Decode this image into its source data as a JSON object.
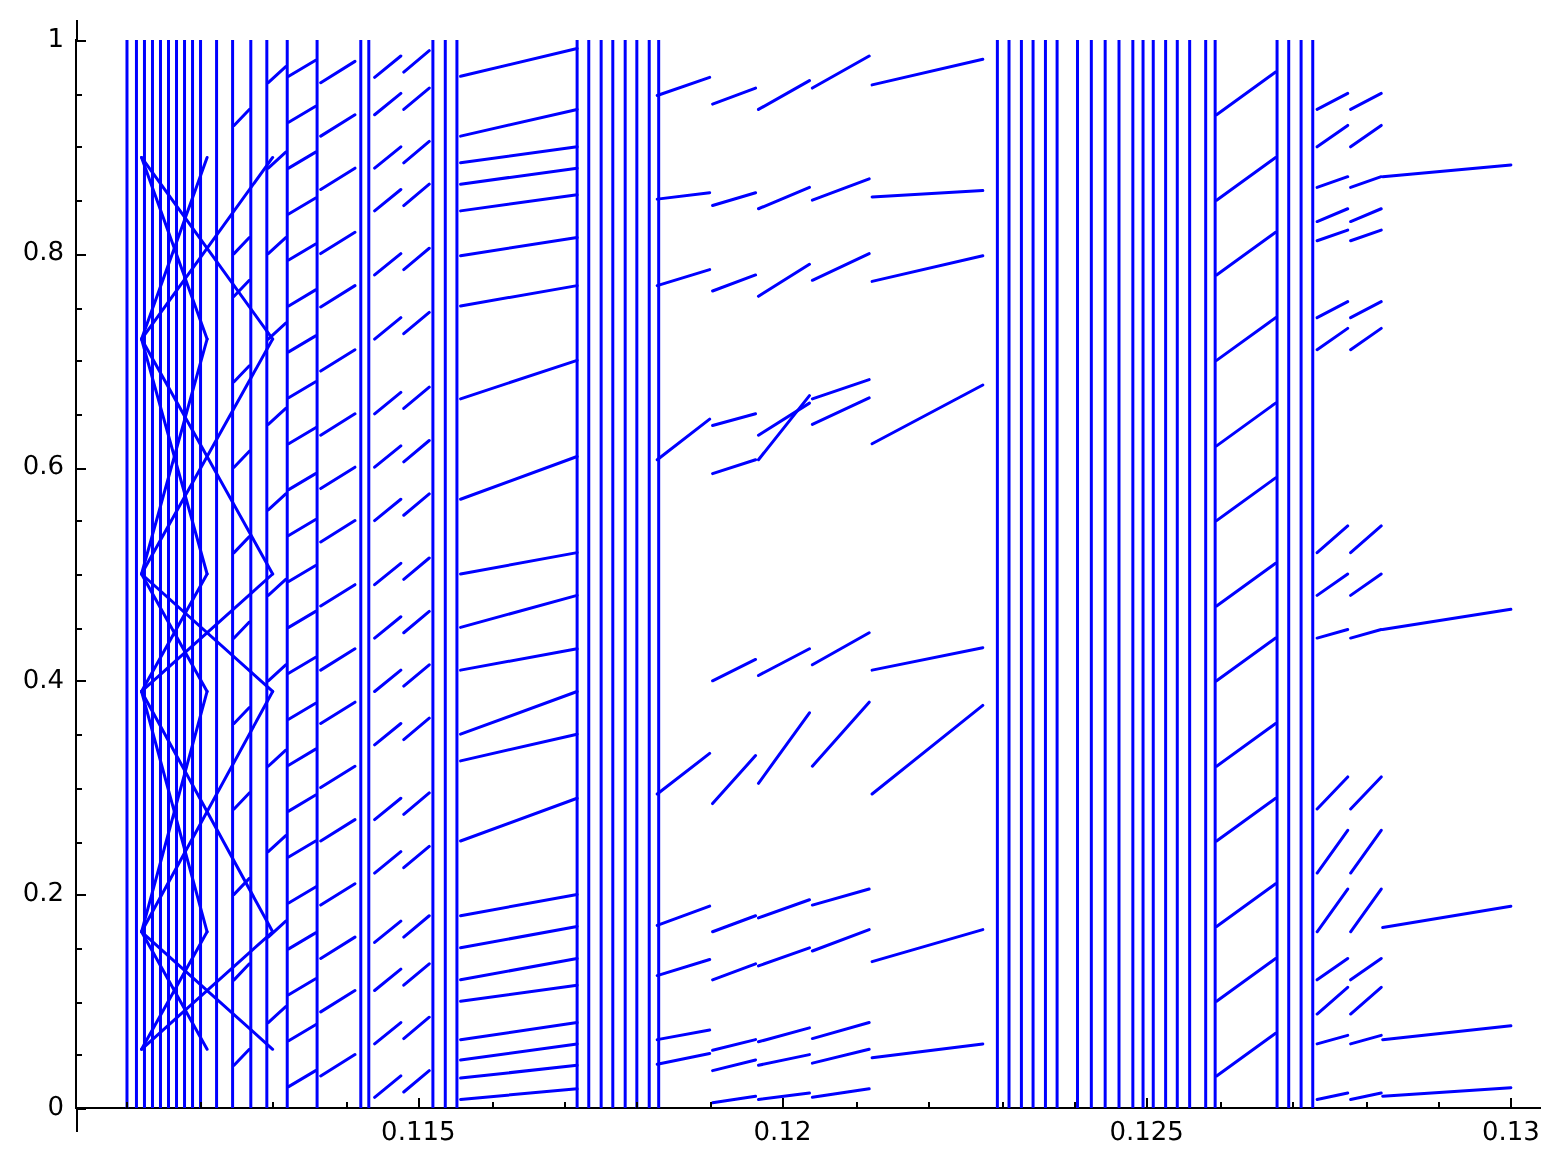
{
  "chart_data": {
    "type": "line",
    "xlim": [
      0.1103,
      0.1304
    ],
    "ylim": [
      0,
      1
    ],
    "xticks": [
      {
        "value": 0.111,
        "label": null
      },
      {
        "value": 0.112,
        "label": null
      },
      {
        "value": 0.113,
        "label": null
      },
      {
        "value": 0.114,
        "label": null
      },
      0.115,
      {
        "value": 0.116,
        "label": null
      },
      {
        "value": 0.117,
        "label": null
      },
      {
        "value": 0.118,
        "label": null
      },
      {
        "value": 0.119,
        "label": null
      },
      0.12,
      {
        "value": 0.121,
        "label": null
      },
      {
        "value": 0.122,
        "label": null
      },
      {
        "value": 0.123,
        "label": null
      },
      {
        "value": 0.124,
        "label": null
      },
      0.125,
      {
        "value": 0.126,
        "label": null
      },
      {
        "value": 0.127,
        "label": null
      },
      {
        "value": 0.128,
        "label": null
      },
      {
        "value": 0.129,
        "label": null
      },
      0.13
    ],
    "yticks": [
      0,
      {
        "value": 0.05,
        "label": null
      },
      {
        "value": 0.1,
        "label": null
      },
      {
        "value": 0.15,
        "label": null
      },
      0.2,
      {
        "value": 0.25,
        "label": null
      },
      {
        "value": 0.3,
        "label": null
      },
      {
        "value": 0.35,
        "label": null
      },
      0.4,
      {
        "value": 0.45,
        "label": null
      },
      {
        "value": 0.5,
        "label": null
      },
      {
        "value": 0.55,
        "label": null
      },
      0.6,
      {
        "value": 0.65,
        "label": null
      },
      {
        "value": 0.7,
        "label": null
      },
      {
        "value": 0.75,
        "label": null
      },
      0.8,
      {
        "value": 0.85,
        "label": null
      },
      {
        "value": 0.9,
        "label": null
      },
      {
        "value": 0.95,
        "label": null
      },
      1
    ],
    "ref_lines": [
      {
        "axis": "x",
        "value": 0.111,
        "color": "#0000ff"
      },
      {
        "axis": "x",
        "value": 0.11113,
        "color": "#0000ff"
      },
      {
        "axis": "x",
        "value": 0.11124,
        "color": "#0000ff"
      },
      {
        "axis": "x",
        "value": 0.11135,
        "color": "#0000ff"
      },
      {
        "axis": "x",
        "value": 0.11146,
        "color": "#0000ff"
      },
      {
        "axis": "x",
        "value": 0.11157,
        "color": "#0000ff"
      },
      {
        "axis": "x",
        "value": 0.11168,
        "color": "#0000ff"
      },
      {
        "axis": "x",
        "value": 0.11179,
        "color": "#0000ff"
      },
      {
        "axis": "x",
        "value": 0.1119,
        "color": "#0000ff"
      },
      {
        "axis": "x",
        "value": 0.11201,
        "color": "#0000ff"
      },
      {
        "axis": "x",
        "value": 0.11223,
        "color": "#0000ff"
      },
      {
        "axis": "x",
        "value": 0.11245,
        "color": "#0000ff"
      },
      {
        "axis": "x",
        "value": 0.1127,
        "color": "#0000ff"
      },
      {
        "axis": "x",
        "value": 0.11292,
        "color": "#0000ff"
      },
      {
        "axis": "x",
        "value": 0.1132,
        "color": "#0000ff"
      },
      {
        "axis": "x",
        "value": 0.11361,
        "color": "#0000ff"
      },
      {
        "axis": "x",
        "value": 0.11421,
        "color": "#0000ff"
      },
      {
        "axis": "x",
        "value": 0.11432,
        "color": "#0000ff"
      },
      {
        "axis": "x",
        "value": 0.1152,
        "color": "#0000ff"
      },
      {
        "axis": "x",
        "value": 0.11537,
        "color": "#0000ff"
      },
      {
        "axis": "x",
        "value": 0.11553,
        "color": "#0000ff"
      },
      {
        "axis": "x",
        "value": 0.11718,
        "color": "#0000ff"
      },
      {
        "axis": "x",
        "value": 0.11734,
        "color": "#0000ff"
      },
      {
        "axis": "x",
        "value": 0.11751,
        "color": "#0000ff"
      },
      {
        "axis": "x",
        "value": 0.11767,
        "color": "#0000ff"
      },
      {
        "axis": "x",
        "value": 0.11784,
        "color": "#0000ff"
      },
      {
        "axis": "x",
        "value": 0.118,
        "color": "#0000ff"
      },
      {
        "axis": "x",
        "value": 0.11817,
        "color": "#0000ff"
      },
      {
        "axis": "x",
        "value": 0.1183,
        "color": "#0000ff"
      },
      {
        "axis": "x",
        "value": 0.12295,
        "color": "#0000ff"
      },
      {
        "axis": "x",
        "value": 0.12311,
        "color": "#0000ff"
      },
      {
        "axis": "x",
        "value": 0.12328,
        "color": "#0000ff"
      },
      {
        "axis": "x",
        "value": 0.12344,
        "color": "#0000ff"
      },
      {
        "axis": "x",
        "value": 0.12361,
        "color": "#0000ff"
      },
      {
        "axis": "x",
        "value": 0.12377,
        "color": "#0000ff"
      },
      {
        "axis": "x",
        "value": 0.12405,
        "color": "#0000ff"
      },
      {
        "axis": "x",
        "value": 0.12424,
        "color": "#0000ff"
      },
      {
        "axis": "x",
        "value": 0.12443,
        "color": "#0000ff"
      },
      {
        "axis": "x",
        "value": 0.12462,
        "color": "#0000ff"
      },
      {
        "axis": "x",
        "value": 0.12481,
        "color": "#0000ff"
      },
      {
        "axis": "x",
        "value": 0.12495,
        "color": "#0000ff"
      },
      {
        "axis": "x",
        "value": 0.12509,
        "color": "#0000ff"
      },
      {
        "axis": "x",
        "value": 0.12526,
        "color": "#0000ff"
      },
      {
        "axis": "x",
        "value": 0.12542,
        "color": "#0000ff"
      },
      {
        "axis": "x",
        "value": 0.12559,
        "color": "#0000ff"
      },
      {
        "axis": "x",
        "value": 0.12581,
        "color": "#0000ff"
      },
      {
        "axis": "x",
        "value": 0.12594,
        "color": "#0000ff"
      },
      {
        "axis": "x",
        "value": 0.12679,
        "color": "#0000ff"
      },
      {
        "axis": "x",
        "value": 0.12695,
        "color": "#0000ff"
      },
      {
        "axis": "x",
        "value": 0.12712,
        "color": "#0000ff"
      },
      {
        "axis": "x",
        "value": 0.12728,
        "color": "#0000ff"
      }
    ],
    "series": [
      {
        "color": "#0000ff",
        "x": [
          0.1112,
          0.1121,
          null,
          0.11247,
          0.11268,
          null,
          0.11294,
          0.11318,
          null,
          0.11322,
          0.11359,
          null,
          0.11366,
          0.11413,
          null,
          0.1144,
          0.11476,
          null,
          0.1148,
          0.11515,
          null,
          0.11558,
          0.11718,
          null,
          0.11904,
          0.11963,
          null,
          0.11967,
          0.12037,
          null,
          0.12041,
          0.12119,
          null,
          0.12596,
          0.12677,
          null,
          0.12734,
          0.12776,
          null,
          0.1278,
          0.12822,
          null,
          0.12824,
          0.13
        ],
        "values": [
          0.055,
          0.165,
          null,
          0.04,
          0.055,
          null,
          0.08,
          0.095,
          null,
          0.02,
          0.035,
          null,
          0.03,
          0.05,
          null,
          0.01,
          0.03,
          null,
          0.015,
          0.035,
          null,
          0.008,
          0.018,
          null,
          0.005,
          0.011,
          null,
          0.008,
          0.014,
          null,
          0.01,
          0.018,
          null,
          0.03,
          0.07,
          null,
          0.008,
          0.014,
          null,
          0.008,
          0.014,
          null,
          0.011,
          0.019
        ]
      },
      {
        "color": "#0000ff",
        "x": [
          0.1112,
          0.113,
          null,
          0.11322,
          0.11359,
          null,
          0.11366,
          0.11413,
          null,
          0.1144,
          0.11476,
          null,
          0.1148,
          0.11515,
          null,
          0.11558,
          0.11718,
          null,
          0.11828,
          0.119,
          null,
          0.11904,
          0.11963,
          null,
          0.11967,
          0.12037,
          null,
          0.12041,
          0.12119,
          null,
          0.12596,
          0.12677,
          null,
          0.12734,
          0.12776,
          null,
          0.1278,
          0.12822,
          null,
          0.12824,
          0.13
        ],
        "values": [
          0.055,
          0.165,
          null,
          0.063,
          0.078,
          null,
          0.09,
          0.11,
          null,
          0.06,
          0.08,
          null,
          0.065,
          0.085,
          null,
          0.028,
          0.04,
          null,
          0.041,
          0.051,
          null,
          0.035,
          0.045,
          null,
          0.04,
          0.05,
          null,
          0.042,
          0.055,
          null,
          0.1,
          0.14,
          null,
          0.06,
          0.068,
          null,
          0.06,
          0.068,
          null,
          0.064,
          0.077
        ]
      },
      {
        "color": "#0000ff",
        "x": [
          0.1112,
          0.1121,
          null,
          0.11247,
          0.11268,
          null,
          0.11294,
          0.11318,
          null,
          0.11322,
          0.11359,
          null,
          0.11366,
          0.11413,
          null,
          0.1144,
          0.11476,
          null,
          0.1148,
          0.11515,
          null,
          0.11558,
          0.11718,
          null,
          0.11828,
          0.119,
          null,
          0.11904,
          0.11963,
          null,
          0.11967,
          0.12037,
          null,
          0.12041,
          0.12119,
          null,
          0.12123,
          0.12275,
          null,
          0.12596,
          0.12677,
          null,
          0.12734,
          0.12776,
          null,
          0.1278,
          0.12822
        ],
        "values": [
          0.165,
          0.055,
          null,
          0.12,
          0.135,
          null,
          0.16,
          0.175,
          null,
          0.106,
          0.121,
          null,
          0.14,
          0.16,
          null,
          0.11,
          0.13,
          null,
          0.115,
          0.135,
          null,
          0.045,
          0.06,
          null,
          0.064,
          0.073,
          null,
          0.054,
          0.064,
          null,
          0.062,
          0.075,
          null,
          0.065,
          0.08,
          null,
          0.047,
          0.06,
          null,
          0.17,
          0.21,
          null,
          0.088,
          0.113,
          null,
          0.088,
          0.113
        ]
      },
      {
        "color": "#0000ff",
        "x": [
          0.1112,
          0.113,
          null,
          0.11322,
          0.11359,
          null,
          0.11366,
          0.11413,
          null,
          0.1144,
          0.11476,
          null,
          0.1148,
          0.11515,
          null,
          0.11558,
          0.11718,
          null,
          0.11828,
          0.119,
          null,
          0.11904,
          0.11963,
          null,
          0.11967,
          0.12037,
          null,
          0.12041,
          0.12119,
          null,
          0.12123,
          0.12275,
          null,
          0.12596,
          0.12677,
          null,
          0.12734,
          0.12776,
          null,
          0.1278,
          0.12822
        ],
        "values": [
          0.165,
          0.055,
          null,
          0.149,
          0.164,
          null,
          0.19,
          0.21,
          null,
          0.155,
          0.175,
          null,
          0.16,
          0.18,
          null,
          0.064,
          0.08,
          null,
          0.124,
          0.139,
          null,
          0.12,
          0.135,
          null,
          0.133,
          0.15,
          null,
          0.147,
          0.167,
          null,
          0.137,
          0.167,
          null,
          0.25,
          0.29,
          null,
          0.12,
          0.14,
          null,
          0.12,
          0.14
        ]
      },
      {
        "color": "#0000ff",
        "x": [
          0.1112,
          0.1121,
          null,
          0.11247,
          0.11268,
          null,
          0.11294,
          0.11318,
          null,
          0.11322,
          0.11359,
          null,
          0.11366,
          0.11413,
          null,
          0.1144,
          0.11476,
          null,
          0.1148,
          0.11515,
          null,
          0.11558,
          0.11718,
          null,
          0.11828,
          0.119,
          null,
          0.11904,
          0.11963,
          null,
          0.11967,
          0.12037,
          null,
          0.12041,
          0.12119,
          null,
          0.12596,
          0.12677,
          null,
          0.12734,
          0.12776,
          null,
          0.1278,
          0.12822,
          null,
          0.12824,
          0.13
        ],
        "values": [
          0.165,
          0.39,
          null,
          0.2,
          0.215,
          null,
          0.24,
          0.255,
          null,
          0.192,
          0.207,
          null,
          0.25,
          0.27,
          null,
          0.22,
          0.24,
          null,
          0.225,
          0.245,
          null,
          0.1,
          0.115,
          null,
          0.171,
          0.189,
          null,
          0.165,
          0.18,
          null,
          0.178,
          0.195,
          null,
          0.19,
          0.205,
          null,
          0.32,
          0.36,
          null,
          0.165,
          0.205,
          null,
          0.165,
          0.205,
          null,
          0.169,
          0.189
        ]
      },
      {
        "color": "#0000ff",
        "x": [
          0.1112,
          0.113,
          null,
          0.11322,
          0.11359,
          null,
          0.11366,
          0.11413,
          null,
          0.1144,
          0.11476,
          null,
          0.1148,
          0.11515,
          null,
          0.11558,
          0.11718,
          null,
          0.11828,
          0.119,
          null,
          0.11904,
          0.11963,
          null,
          0.11967,
          0.12037,
          null,
          0.12041,
          0.12119,
          null,
          0.12123,
          0.12275,
          null,
          0.12596,
          0.12677,
          null,
          0.12734,
          0.12776,
          null,
          0.1278,
          0.12822
        ],
        "values": [
          0.165,
          0.39,
          null,
          0.235,
          0.25,
          null,
          0.3,
          0.32,
          null,
          0.27,
          0.29,
          null,
          0.275,
          0.295,
          null,
          0.12,
          0.14,
          null,
          0.294,
          0.332,
          null,
          0.285,
          0.33,
          null,
          0.304,
          0.37,
          null,
          0.32,
          0.38,
          null,
          0.294,
          0.377,
          null,
          0.4,
          0.44,
          null,
          0.22,
          0.26,
          null,
          0.22,
          0.26
        ]
      },
      {
        "color": "#0000ff",
        "x": [
          0.1112,
          0.1121,
          null,
          0.11247,
          0.11268,
          null,
          0.11294,
          0.11318,
          null,
          0.11322,
          0.11359,
          null,
          0.11366,
          0.11413,
          null,
          0.1144,
          0.11476,
          null,
          0.1148,
          0.11515,
          null,
          0.11558,
          0.11718,
          null,
          0.11904,
          0.11963,
          null,
          0.11967,
          0.12037,
          null,
          0.12041,
          0.12119,
          null,
          0.12123,
          0.12275,
          null,
          0.12596,
          0.12677,
          null,
          0.12734,
          0.12776,
          null,
          0.1278,
          0.12822
        ],
        "values": [
          0.39,
          0.165,
          null,
          0.28,
          0.295,
          null,
          0.32,
          0.335,
          null,
          0.278,
          0.293,
          null,
          0.36,
          0.38,
          null,
          0.34,
          0.36,
          null,
          0.345,
          0.365,
          null,
          0.15,
          0.17,
          null,
          0.4,
          0.42,
          null,
          0.405,
          0.43,
          null,
          0.415,
          0.445,
          null,
          0.41,
          0.431,
          null,
          0.47,
          0.51,
          null,
          0.28,
          0.31,
          null,
          0.28,
          0.31
        ]
      },
      {
        "color": "#0000ff",
        "x": [
          0.1112,
          0.113,
          null,
          0.11322,
          0.11359,
          null,
          0.11366,
          0.11413,
          null,
          0.1144,
          0.11476,
          null,
          0.1148,
          0.11515,
          null,
          0.11558,
          0.11718,
          null,
          0.11828,
          0.119,
          null,
          0.11904,
          0.11963,
          null,
          0.11967,
          0.12037,
          null,
          0.12041,
          0.12119,
          null,
          0.12123,
          0.12275,
          null,
          0.12596,
          0.12677,
          null,
          0.12734,
          0.12776,
          null,
          0.1278,
          0.12822,
          null,
          0.12824,
          0.13
        ],
        "values": [
          0.39,
          0.165,
          null,
          0.321,
          0.336,
          null,
          0.41,
          0.43,
          null,
          0.39,
          0.41,
          null,
          0.395,
          0.415,
          null,
          0.18,
          0.2,
          null,
          0.607,
          0.645,
          null,
          0.594,
          0.607,
          null,
          0.607,
          0.667,
          null,
          0.664,
          0.682,
          null,
          0.622,
          0.677,
          null,
          0.55,
          0.59,
          null,
          0.44,
          0.448,
          null,
          0.44,
          0.448,
          null,
          0.448,
          0.467
        ]
      },
      {
        "color": "#0000ff",
        "x": [
          0.1112,
          0.1121,
          null,
          0.11247,
          0.11268,
          null,
          0.11294,
          0.11318,
          null,
          0.11322,
          0.11359,
          null,
          0.11366,
          0.11413,
          null,
          0.1144,
          0.11476,
          null,
          0.1148,
          0.11515,
          null,
          0.11558,
          0.11718,
          null,
          0.11904,
          0.11963,
          null,
          0.11967,
          0.12037,
          null,
          0.12041,
          0.12119,
          null,
          0.12596,
          0.12677,
          null,
          0.12734,
          0.12776,
          null,
          0.1278,
          0.12822
        ],
        "values": [
          0.39,
          0.5,
          null,
          0.36,
          0.375,
          null,
          0.4,
          0.415,
          null,
          0.364,
          0.379,
          null,
          0.47,
          0.49,
          null,
          0.44,
          0.46,
          null,
          0.445,
          0.465,
          null,
          0.25,
          0.29,
          null,
          0.639,
          0.65,
          null,
          0.63,
          0.66,
          null,
          0.64,
          0.665,
          null,
          0.62,
          0.66,
          null,
          0.48,
          0.5,
          null,
          0.48,
          0.5
        ]
      },
      {
        "color": "#0000ff",
        "x": [
          0.1112,
          0.113,
          null,
          0.11322,
          0.11359,
          null,
          0.11366,
          0.11413,
          null,
          0.1144,
          0.11476,
          null,
          0.1148,
          0.11515,
          null,
          0.11558,
          0.11718,
          null,
          0.11828,
          0.119,
          null,
          0.11904,
          0.11963,
          null,
          0.11967,
          0.12037,
          null,
          0.12041,
          0.12119,
          null,
          0.12123,
          0.12275,
          null,
          0.12596,
          0.12677,
          null,
          0.12734,
          0.12776,
          null,
          0.1278,
          0.12822
        ],
        "values": [
          0.39,
          0.5,
          null,
          0.407,
          0.422,
          null,
          0.53,
          0.55,
          null,
          0.49,
          0.51,
          null,
          0.495,
          0.515,
          null,
          0.325,
          0.35,
          null,
          0.77,
          0.785,
          null,
          0.765,
          0.78,
          null,
          0.76,
          0.79,
          null,
          0.775,
          0.8,
          null,
          0.774,
          0.798,
          null,
          0.7,
          0.74,
          null,
          0.52,
          0.545,
          null,
          0.52,
          0.545
        ]
      },
      {
        "color": "#0000ff",
        "x": [
          0.1112,
          0.1121,
          null,
          0.11247,
          0.11268,
          null,
          0.11294,
          0.11318,
          null,
          0.11322,
          0.11359,
          null,
          0.11366,
          0.11413,
          null,
          0.1144,
          0.11476,
          null,
          0.1148,
          0.11515,
          null,
          0.11558,
          0.11718,
          null,
          0.11828,
          0.119,
          null,
          0.11904,
          0.11963,
          null,
          0.11967,
          0.12037,
          null,
          0.12041,
          0.12119,
          null,
          0.12123,
          0.12275,
          null,
          0.12596,
          0.12677,
          null,
          0.12734,
          0.12776,
          null,
          0.1278,
          0.12822
        ],
        "values": [
          0.5,
          0.39,
          null,
          0.44,
          0.455,
          null,
          0.48,
          0.495,
          null,
          0.45,
          0.465,
          null,
          0.58,
          0.6,
          null,
          0.55,
          0.57,
          null,
          0.555,
          0.575,
          null,
          0.35,
          0.39,
          null,
          0.851,
          0.857,
          null,
          0.845,
          0.857,
          null,
          0.842,
          0.862,
          null,
          0.85,
          0.87,
          null,
          0.853,
          0.859,
          null,
          0.78,
          0.82,
          null,
          0.71,
          0.73,
          null,
          0.71,
          0.73
        ]
      },
      {
        "color": "#0000ff",
        "x": [
          0.1112,
          0.113,
          null,
          0.11322,
          0.11359,
          null,
          0.11366,
          0.11413,
          null,
          0.1144,
          0.11476,
          null,
          0.1148,
          0.11515,
          null,
          0.11558,
          0.11718,
          null,
          0.11828,
          0.119,
          null,
          0.11904,
          0.11963,
          null,
          0.11967,
          0.12037,
          null,
          0.12041,
          0.12119,
          null,
          0.12123,
          0.12275,
          null,
          0.12596,
          0.12677,
          null,
          0.12734,
          0.12776,
          null,
          0.1278,
          0.12822
        ],
        "values": [
          0.5,
          0.39,
          null,
          0.493,
          0.508,
          null,
          0.63,
          0.65,
          null,
          0.6,
          0.62,
          null,
          0.605,
          0.625,
          null,
          0.41,
          0.43,
          null,
          0.948,
          0.965,
          null,
          0.94,
          0.955,
          null,
          0.935,
          0.962,
          null,
          0.955,
          0.985,
          null,
          0.958,
          0.982,
          null,
          0.85,
          0.89,
          null,
          0.74,
          0.755,
          null,
          0.74,
          0.755
        ]
      },
      {
        "color": "#0000ff",
        "x": [
          0.1112,
          0.1121,
          null,
          0.11247,
          0.11268,
          null,
          0.11294,
          0.11318,
          null,
          0.11322,
          0.11359,
          null,
          0.11366,
          0.11413,
          null,
          0.1144,
          0.11476,
          null,
          0.1148,
          0.11515,
          null,
          0.11558,
          0.11718,
          null,
          0.12596,
          0.12677,
          null,
          0.12734,
          0.12776,
          null,
          0.1278,
          0.12822
        ],
        "values": [
          0.5,
          0.72,
          null,
          0.52,
          0.535,
          null,
          0.56,
          0.575,
          null,
          0.536,
          0.551,
          null,
          0.69,
          0.71,
          null,
          0.65,
          0.67,
          null,
          0.655,
          0.675,
          null,
          0.45,
          0.48,
          null,
          0.93,
          0.97,
          null,
          0.812,
          0.822,
          null,
          0.812,
          0.822
        ]
      },
      {
        "color": "#0000ff",
        "x": [
          0.1112,
          0.113,
          null,
          0.11322,
          0.11359,
          null,
          0.11366,
          0.11413,
          null,
          0.1144,
          0.11476,
          null,
          0.1148,
          0.11515,
          null,
          0.11558,
          0.11718,
          null,
          0.12734,
          0.12776,
          null,
          0.1278,
          0.12822
        ],
        "values": [
          0.5,
          0.72,
          null,
          0.579,
          0.594,
          null,
          0.75,
          0.77,
          null,
          0.72,
          0.74,
          null,
          0.725,
          0.745,
          null,
          0.5,
          0.52,
          null,
          0.83,
          0.842,
          null,
          0.83,
          0.842
        ]
      },
      {
        "color": "#0000ff",
        "x": [
          0.1112,
          0.1121,
          null,
          0.11247,
          0.11268,
          null,
          0.11294,
          0.11318,
          null,
          0.11322,
          0.11359,
          null,
          0.11366,
          0.11413,
          null,
          0.1144,
          0.11476,
          null,
          0.1148,
          0.11515,
          null,
          0.11558,
          0.11718,
          null,
          0.12734,
          0.12776,
          null,
          0.1278,
          0.12822,
          null,
          0.12824,
          0.13
        ],
        "values": [
          0.72,
          0.5,
          null,
          0.6,
          0.615,
          null,
          0.64,
          0.655,
          null,
          0.622,
          0.637,
          null,
          0.8,
          0.82,
          null,
          0.78,
          0.8,
          null,
          0.785,
          0.805,
          null,
          0.57,
          0.61,
          null,
          0.862,
          0.872,
          null,
          0.862,
          0.872,
          null,
          0.872,
          0.883
        ]
      },
      {
        "color": "#0000ff",
        "x": [
          0.1112,
          0.113,
          null,
          0.11322,
          0.11359,
          null,
          0.11366,
          0.11413,
          null,
          0.1144,
          0.11476,
          null,
          0.1148,
          0.11515,
          null,
          0.11558,
          0.11718,
          null,
          0.12734,
          0.12776,
          null,
          0.1278,
          0.12822
        ],
        "values": [
          0.72,
          0.5,
          null,
          0.665,
          0.68,
          null,
          0.86,
          0.88,
          null,
          0.84,
          0.86,
          null,
          0.845,
          0.865,
          null,
          0.664,
          0.7,
          null,
          0.9,
          0.92,
          null,
          0.9,
          0.92
        ]
      },
      {
        "color": "#0000ff",
        "x": [
          0.1112,
          0.1121,
          null,
          0.11247,
          0.11268,
          null,
          0.11294,
          0.11318,
          null,
          0.11322,
          0.11359,
          null,
          0.11366,
          0.11413,
          null,
          0.1144,
          0.11476,
          null,
          0.1148,
          0.11515,
          null,
          0.11558,
          0.11718,
          null,
          0.12734,
          0.12776,
          null,
          0.1278,
          0.12822
        ],
        "values": [
          0.72,
          0.89,
          null,
          0.68,
          0.695,
          null,
          0.72,
          0.735,
          null,
          0.708,
          0.723,
          null,
          0.91,
          0.93,
          null,
          0.88,
          0.9,
          null,
          0.885,
          0.905,
          null,
          0.751,
          0.77,
          null,
          0.935,
          0.95,
          null,
          0.935,
          0.95
        ]
      },
      {
        "color": "#0000ff",
        "x": [
          0.1112,
          0.113,
          null,
          0.11322,
          0.11359,
          null,
          0.11366,
          0.11413,
          null,
          0.1144,
          0.11476,
          null,
          0.1148,
          0.11515,
          null,
          0.11558,
          0.11718
        ],
        "values": [
          0.72,
          0.89,
          null,
          0.751,
          0.766,
          null,
          0.96,
          0.98,
          null,
          0.93,
          0.95,
          null,
          0.935,
          0.955,
          null,
          0.798,
          0.815
        ]
      },
      {
        "color": "#0000ff",
        "x": [
          0.1112,
          0.1121,
          null,
          0.11247,
          0.11268,
          null,
          0.11294,
          0.11318,
          null,
          0.11322,
          0.11359,
          null,
          0.1144,
          0.11476,
          null,
          0.1148,
          0.11515,
          null,
          0.11558,
          0.11718
        ],
        "values": [
          0.89,
          0.72,
          null,
          0.76,
          0.775,
          null,
          0.8,
          0.815,
          null,
          0.794,
          0.809,
          null,
          0.965,
          0.985,
          null,
          0.97,
          0.99,
          null,
          0.84,
          0.855
        ]
      },
      {
        "color": "#0000ff",
        "x": [
          0.1112,
          0.113,
          null,
          0.11322,
          0.11359,
          null,
          0.11558,
          0.11718
        ],
        "values": [
          0.89,
          0.72,
          null,
          0.837,
          0.852,
          null,
          0.865,
          0.88
        ]
      },
      {
        "color": "#0000ff",
        "x": [
          0.11247,
          0.11268,
          null,
          0.11294,
          0.11318,
          null,
          0.11322,
          0.11359,
          null,
          0.11558,
          0.11718
        ],
        "values": [
          0.8,
          0.815,
          null,
          0.88,
          0.895,
          null,
          0.88,
          0.895,
          null,
          0.885,
          0.9
        ]
      },
      {
        "color": "#0000ff",
        "x": [
          0.11322,
          0.11359,
          null,
          0.11558,
          0.11718
        ],
        "values": [
          0.923,
          0.938,
          null,
          0.91,
          0.935
        ]
      },
      {
        "color": "#0000ff",
        "x": [
          0.11247,
          0.11268,
          null,
          0.11294,
          0.11318,
          null,
          0.11322,
          0.11359,
          null,
          0.11558,
          0.11718
        ],
        "values": [
          0.92,
          0.935,
          null,
          0.96,
          0.975,
          null,
          0.966,
          0.981,
          null,
          0.966,
          0.992
        ]
      }
    ]
  }
}
